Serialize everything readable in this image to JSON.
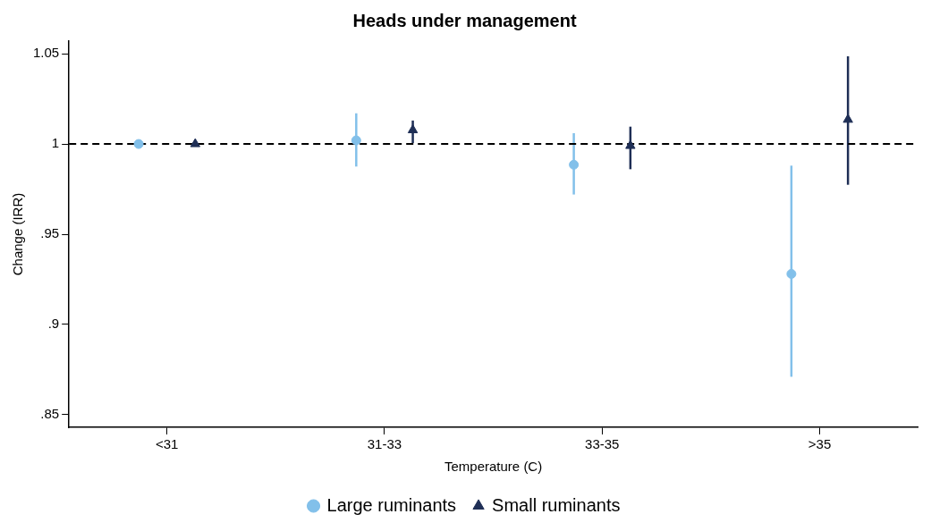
{
  "chart_data": {
    "type": "scatter",
    "title": "Heads under management",
    "xlabel": "Temperature (C)",
    "ylabel": "Change (IRR)",
    "categories": [
      "<31",
      "31-33",
      "33-35",
      ">35"
    ],
    "series": [
      {
        "name": "Large ruminants",
        "color": "#82c0ea",
        "marker": "circle",
        "values": [
          1.0,
          1.002,
          0.9885,
          0.928
        ],
        "errors": [
          null,
          [
            0.9875,
            1.017
          ],
          [
            0.972,
            1.006
          ],
          [
            0.871,
            0.988
          ]
        ]
      },
      {
        "name": "Small ruminants",
        "color": "#1f2f56",
        "marker": "triangle",
        "values": [
          1.0,
          1.0077,
          0.999,
          1.0135
        ],
        "errors": [
          null,
          [
            1.0005,
            1.013
          ],
          [
            0.986,
            1.0096
          ],
          [
            0.9774,
            1.0486
          ]
        ]
      }
    ],
    "ylim": [
      0.843,
      1.057
    ],
    "yticks": [
      {
        "value": 0.85,
        "label": ".85"
      },
      {
        "value": 0.9,
        "label": ".9"
      },
      {
        "value": 0.95,
        "label": ".95"
      },
      1,
      1.05
    ],
    "ref_lines": [
      {
        "axis": "y",
        "value": 1,
        "color": "#000000",
        "line_style": "dashed"
      }
    ],
    "grid": false,
    "legend": "bottom"
  }
}
